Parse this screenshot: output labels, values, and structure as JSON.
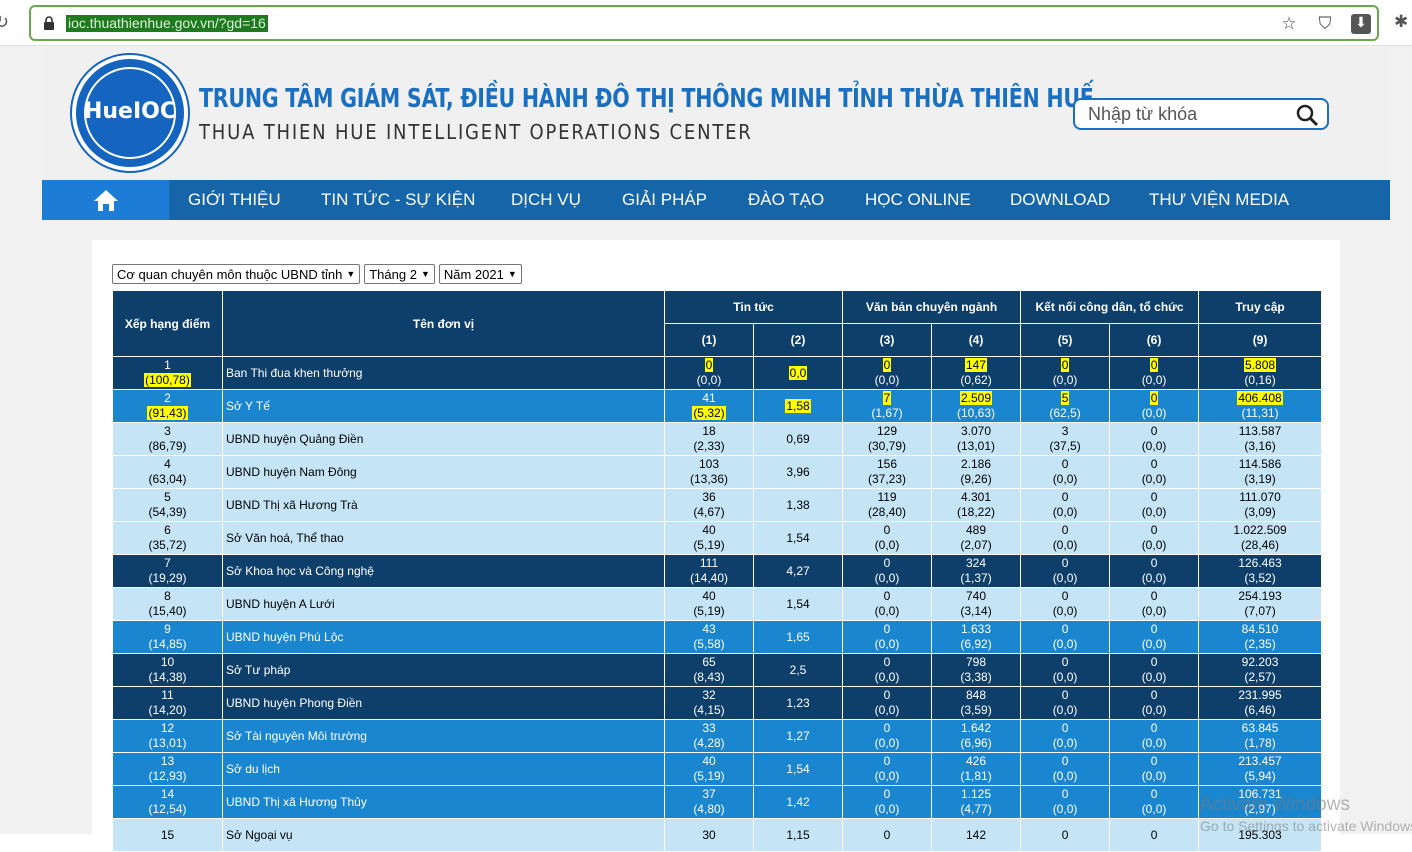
{
  "browser": {
    "url": "ioc.thuathienhue.gov.vn/?gd=16"
  },
  "header": {
    "logo_text": "HueIOC",
    "title_vn": "TRUNG TÂM GIÁM SÁT, ĐIỀU HÀNH ĐÔ THỊ THÔNG MINH TỈNH THỪA THIÊN HUẾ",
    "title_en": "THUA THIEN HUE INTELLIGENT OPERATIONS CENTER",
    "search_placeholder": "Nhập từ khóa"
  },
  "nav": {
    "items": [
      "GIỚI THIỆU",
      "TIN TỨC - SỰ KIỆN",
      "DỊCH VỤ",
      "GIẢI PHÁP",
      "ĐÀO TẠO",
      "HỌC ONLINE",
      "DOWNLOAD",
      "THƯ VIỆN MEDIA"
    ]
  },
  "filters": {
    "unit_type": "Cơ quan chuyên môn thuộc UBND tỉnh",
    "month": "Tháng 2",
    "year": "Năm 2021"
  },
  "table": {
    "headers": {
      "rank": "Xếp hạng điểm",
      "unit": "Tên đơn vị",
      "news": "Tin tức",
      "docs": "Văn bản chuyên ngành",
      "connect": "Kết nối công dân, tổ chức",
      "access": "Truy cập",
      "c1": "(1)",
      "c2": "(2)",
      "c3": "(3)",
      "c4": "(4)",
      "c5": "(5)",
      "c6": "(6)",
      "c9": "(9)"
    },
    "rows": [
      {
        "rank": "1",
        "score": "(100,78)",
        "name": "Ban Thi đua khen thưởng",
        "c1": "0",
        "c1b": "(0,0)",
        "c2": "0,0",
        "c3": "0",
        "c3b": "(0,0)",
        "c4": "147",
        "c4b": "(0,62)",
        "c5": "0",
        "c5b": "(0,0)",
        "c6": "0",
        "c6b": "(0,0)",
        "c9": "5.808",
        "c9b": "(0,16)"
      },
      {
        "rank": "2",
        "score": "(91,43)",
        "name": "Sở Y Tế",
        "c1": "41",
        "c1b": "(5,32)",
        "c2": "1,58",
        "c3": "7",
        "c3b": "(1,67)",
        "c4": "2.509",
        "c4b": "(10,63)",
        "c5": "5",
        "c5b": "(62,5)",
        "c6": "0",
        "c6b": "(0,0)",
        "c9": "406.408",
        "c9b": "(11,31)"
      },
      {
        "rank": "3",
        "score": "(86,79)",
        "name": "UBND huyện Quảng Điền",
        "c1": "18",
        "c1b": "(2,33)",
        "c2": "0,69",
        "c3": "129",
        "c3b": "(30,79)",
        "c4": "3.070",
        "c4b": "(13,01)",
        "c5": "3",
        "c5b": "(37,5)",
        "c6": "0",
        "c6b": "(0,0)",
        "c9": "113.587",
        "c9b": "(3,16)"
      },
      {
        "rank": "4",
        "score": "(63,04)",
        "name": "UBND huyện Nam Đông",
        "c1": "103",
        "c1b": "(13,36)",
        "c2": "3,96",
        "c3": "156",
        "c3b": "(37,23)",
        "c4": "2.186",
        "c4b": "(9,26)",
        "c5": "0",
        "c5b": "(0,0)",
        "c6": "0",
        "c6b": "(0,0)",
        "c9": "114.586",
        "c9b": "(3,19)"
      },
      {
        "rank": "5",
        "score": "(54,39)",
        "name": "UBND Thị xã Hương Trà",
        "c1": "36",
        "c1b": "(4,67)",
        "c2": "1,38",
        "c3": "119",
        "c3b": "(28,40)",
        "c4": "4.301",
        "c4b": "(18,22)",
        "c5": "0",
        "c5b": "(0,0)",
        "c6": "0",
        "c6b": "(0,0)",
        "c9": "111.070",
        "c9b": "(3,09)"
      },
      {
        "rank": "6",
        "score": "(35,72)",
        "name": "Sở Văn hoá, Thể thao",
        "c1": "40",
        "c1b": "(5,19)",
        "c2": "1,54",
        "c3": "0",
        "c3b": "(0,0)",
        "c4": "489",
        "c4b": "(2,07)",
        "c5": "0",
        "c5b": "(0,0)",
        "c6": "0",
        "c6b": "(0,0)",
        "c9": "1.022.509",
        "c9b": "(28,46)"
      },
      {
        "rank": "7",
        "score": "(19,29)",
        "name": "Sở Khoa học và Công nghệ",
        "c1": "111",
        "c1b": "(14,40)",
        "c2": "4,27",
        "c3": "0",
        "c3b": "(0,0)",
        "c4": "324",
        "c4b": "(1,37)",
        "c5": "0",
        "c5b": "(0,0)",
        "c6": "0",
        "c6b": "(0,0)",
        "c9": "126.463",
        "c9b": "(3,52)"
      },
      {
        "rank": "8",
        "score": "(15,40)",
        "name": "UBND huyện A Lưới",
        "c1": "40",
        "c1b": "(5,19)",
        "c2": "1,54",
        "c3": "0",
        "c3b": "(0,0)",
        "c4": "740",
        "c4b": "(3,14)",
        "c5": "0",
        "c5b": "(0,0)",
        "c6": "0",
        "c6b": "(0,0)",
        "c9": "254.193",
        "c9b": "(7,07)"
      },
      {
        "rank": "9",
        "score": "(14,85)",
        "name": "UBND huyện Phú Lộc",
        "c1": "43",
        "c1b": "(5,58)",
        "c2": "1,65",
        "c3": "0",
        "c3b": "(0,0)",
        "c4": "1.633",
        "c4b": "(6,92)",
        "c5": "0",
        "c5b": "(0,0)",
        "c6": "0",
        "c6b": "(0,0)",
        "c9": "84.510",
        "c9b": "(2,35)"
      },
      {
        "rank": "10",
        "score": "(14,38)",
        "name": "Sở Tư pháp",
        "c1": "65",
        "c1b": "(8,43)",
        "c2": "2,5",
        "c3": "0",
        "c3b": "(0,0)",
        "c4": "798",
        "c4b": "(3,38)",
        "c5": "0",
        "c5b": "(0,0)",
        "c6": "0",
        "c6b": "(0,0)",
        "c9": "92.203",
        "c9b": "(2,57)"
      },
      {
        "rank": "11",
        "score": "(14,20)",
        "name": "UBND huyện Phong Điền",
        "c1": "32",
        "c1b": "(4,15)",
        "c2": "1,23",
        "c3": "0",
        "c3b": "(0,0)",
        "c4": "848",
        "c4b": "(3,59)",
        "c5": "0",
        "c5b": "(0,0)",
        "c6": "0",
        "c6b": "(0,0)",
        "c9": "231.995",
        "c9b": "(6,46)"
      },
      {
        "rank": "12",
        "score": "(13,01)",
        "name": "Sở Tài nguyên Môi trường",
        "c1": "33",
        "c1b": "(4,28)",
        "c2": "1,27",
        "c3": "0",
        "c3b": "(0,0)",
        "c4": "1.642",
        "c4b": "(6,96)",
        "c5": "0",
        "c5b": "(0,0)",
        "c6": "0",
        "c6b": "(0,0)",
        "c9": "63.845",
        "c9b": "(1,78)"
      },
      {
        "rank": "13",
        "score": "(12,93)",
        "name": "Sở du lịch",
        "c1": "40",
        "c1b": "(5,19)",
        "c2": "1,54",
        "c3": "0",
        "c3b": "(0,0)",
        "c4": "426",
        "c4b": "(1,81)",
        "c5": "0",
        "c5b": "(0,0)",
        "c6": "0",
        "c6b": "(0,0)",
        "c9": "213.457",
        "c9b": "(5,94)"
      },
      {
        "rank": "14",
        "score": "(12,54)",
        "name": "UBND Thị xã Hương Thủy",
        "c1": "37",
        "c1b": "(4,80)",
        "c2": "1,42",
        "c3": "0",
        "c3b": "(0,0)",
        "c4": "1.125",
        "c4b": "(4,77)",
        "c5": "0",
        "c5b": "(0,0)",
        "c6": "0",
        "c6b": "(0,0)",
        "c9": "106.731",
        "c9b": "(2,97)"
      },
      {
        "rank": "15",
        "score": "",
        "name": "Sở Ngoại vụ",
        "c1": "30",
        "c1b": "",
        "c2": "1,15",
        "c3": "0",
        "c3b": "",
        "c4": "142",
        "c4b": "",
        "c5": "0",
        "c5b": "",
        "c6": "0",
        "c6b": "",
        "c9": "195.303",
        "c9b": ""
      }
    ]
  },
  "watermark": {
    "line1": "Activate Windows",
    "line2": "Go to Settings to activate Windows."
  }
}
